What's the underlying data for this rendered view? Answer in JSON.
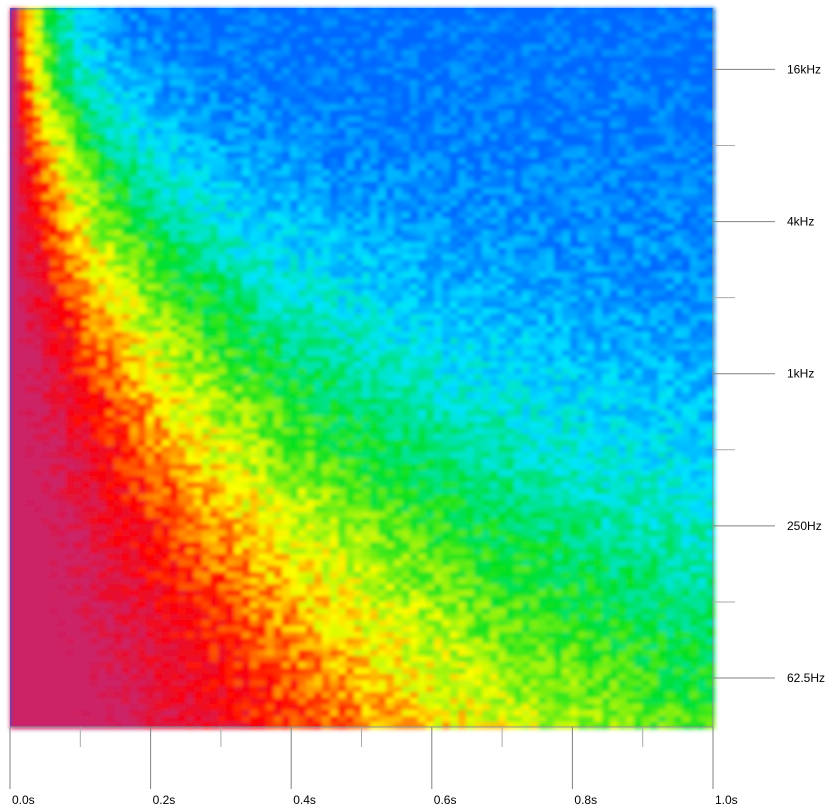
{
  "chart_data": {
    "type": "heatmap",
    "title": "",
    "xlabel": "",
    "ylabel": "",
    "x_axis": {
      "range": [
        0.0,
        1.0
      ],
      "major_ticks": [
        {
          "value": 0.0,
          "label": "0.0s"
        },
        {
          "value": 0.2,
          "label": "0.2s"
        },
        {
          "value": 0.4,
          "label": "0.4s"
        },
        {
          "value": 0.6,
          "label": "0.6s"
        },
        {
          "value": 0.8,
          "label": "0.8s"
        },
        {
          "value": 1.0,
          "label": "1.0s"
        }
      ],
      "minor_ticks": [
        0.1,
        0.3,
        0.5,
        0.7,
        0.9
      ]
    },
    "y_axis": {
      "scale": "log2",
      "range_hz": [
        40,
        28000
      ],
      "major_ticks": [
        {
          "value": 62.5,
          "label": "62.5Hz"
        },
        {
          "value": 250,
          "label": "250Hz"
        },
        {
          "value": 1000,
          "label": "1kHz"
        },
        {
          "value": 4000,
          "label": "4kHz"
        },
        {
          "value": 16000,
          "label": "16kHz"
        }
      ],
      "minor_ticks": [
        125,
        500,
        2000,
        8000
      ]
    },
    "colormap": [
      "#0066ff",
      "#00e5ff",
      "#00e020",
      "#ffff00",
      "#ff0000",
      "#cc2266"
    ],
    "grid": false,
    "legend": "none"
  }
}
